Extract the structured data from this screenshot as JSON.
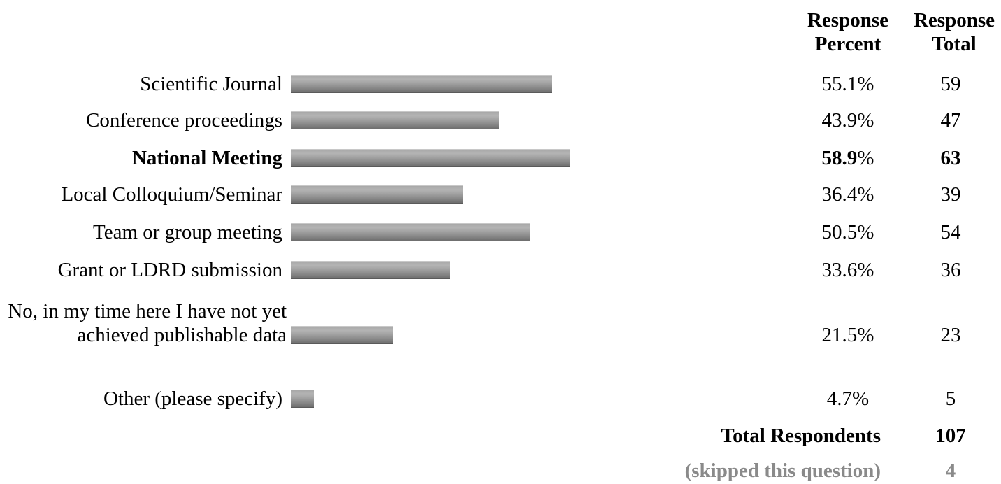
{
  "headers": {
    "percent": [
      "Response",
      "Percent"
    ],
    "total": [
      "Response",
      "Total"
    ]
  },
  "chart_data": {
    "type": "bar",
    "orientation": "horizontal",
    "categories": [
      "Scientific Journal",
      "Conference proceedings",
      "National Meeting",
      "Local Colloquium/Seminar",
      "Team or group meeting",
      "Grant or LDRD submission",
      "No, in my time here I have not yet achieved publishable data",
      "Other (please specify)"
    ],
    "percent_labels": [
      "55.1%",
      "43.9%",
      "58.9%",
      "36.4%",
      "50.5%",
      "33.6%",
      "21.5%",
      "4.7%"
    ],
    "percent_values": [
      55.1,
      43.9,
      58.9,
      36.4,
      50.5,
      33.6,
      21.5,
      4.7
    ],
    "totals": [
      59,
      47,
      63,
      39,
      54,
      36,
      23,
      5
    ],
    "highlighted_index": 2,
    "bar_color": "#8a8a8a"
  },
  "summary": {
    "total_label": "Total Respondents",
    "total_value": "107",
    "skipped_label": "(skipped this question)",
    "skipped_value": "4"
  }
}
